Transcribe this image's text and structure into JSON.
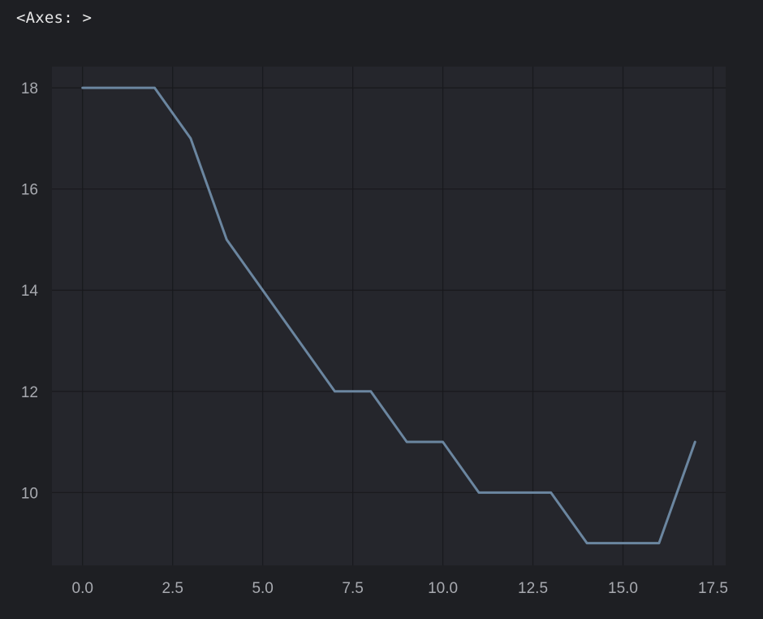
{
  "output": {
    "repr": "<Axes: >"
  },
  "chart_data": {
    "type": "line",
    "title": "",
    "xlabel": "",
    "ylabel": "",
    "x": [
      0,
      1,
      2,
      3,
      4,
      5,
      6,
      7,
      8,
      9,
      10,
      11,
      12,
      13,
      14,
      15,
      16,
      17
    ],
    "series": [
      {
        "values": [
          18,
          18,
          18,
          17,
          15,
          14,
          13,
          12,
          12,
          11,
          11,
          10,
          10,
          10,
          9,
          9,
          9,
          11
        ]
      }
    ],
    "xlim": [
      -0.85,
      17.85
    ],
    "ylim": [
      8.56,
      18.42
    ],
    "x_ticks": [
      0.0,
      2.5,
      5.0,
      7.5,
      10.0,
      12.5,
      15.0,
      17.5
    ],
    "x_tick_labels": [
      "0.0",
      "2.5",
      "5.0",
      "7.5",
      "10.0",
      "12.5",
      "15.0",
      "17.5"
    ],
    "y_ticks": [
      10,
      12,
      14,
      16,
      18
    ],
    "y_tick_labels": [
      "10",
      "12",
      "14",
      "16",
      "18"
    ],
    "grid": true,
    "colors": {
      "background": "#1e1f23",
      "plot_area": "#25262c",
      "grid": "#18191d",
      "line": "#6b86a0",
      "tick_text": "#a8aab0"
    }
  }
}
